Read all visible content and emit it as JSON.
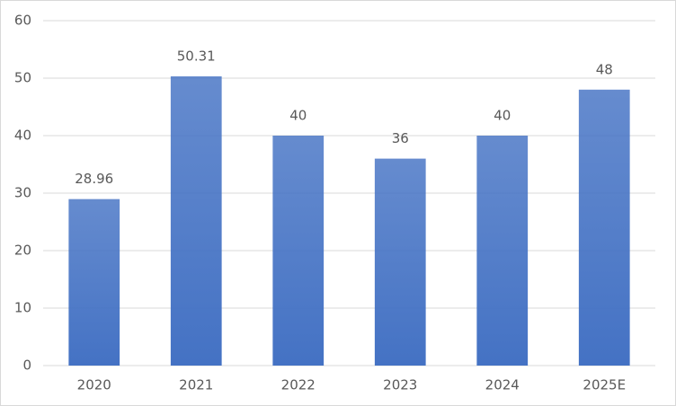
{
  "chart_data": {
    "type": "bar",
    "categories": [
      "2020",
      "2021",
      "2022",
      "2023",
      "2024",
      "2025E"
    ],
    "values": [
      28.96,
      50.31,
      40,
      36,
      40,
      48
    ],
    "color": "#4472c4",
    "ylim": [
      0,
      60
    ],
    "yticks": [
      0,
      10,
      20,
      30,
      40,
      50,
      60
    ],
    "grid": true
  }
}
